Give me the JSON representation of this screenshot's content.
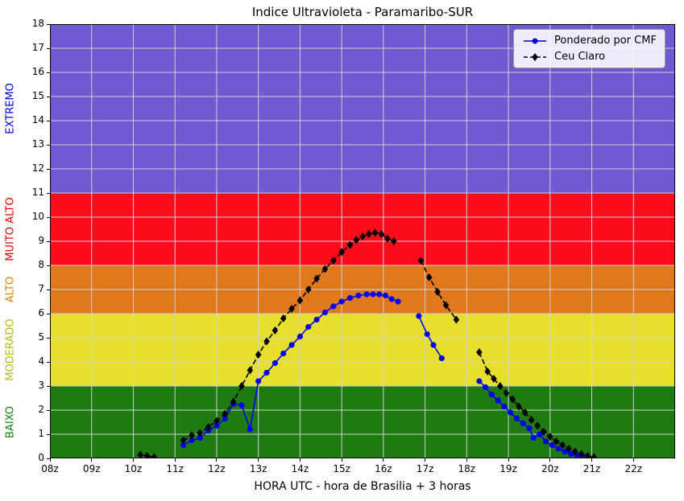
{
  "title": "Indice Ultravioleta - Paramaribo-SUR",
  "axes": {
    "xlabel": "HORA UTC - hora de Brasilia + 3 horas",
    "xlim": [
      8,
      23
    ],
    "ylim": [
      0,
      18
    ],
    "x_ticks": {
      "values": [
        8,
        9,
        10,
        11,
        12,
        13,
        14,
        15,
        16,
        17,
        18,
        19,
        20,
        21,
        22
      ],
      "labels": [
        "08z",
        "09z",
        "10z",
        "11z",
        "12z",
        "13z",
        "14z",
        "15z",
        "16z",
        "17z",
        "18z",
        "19z",
        "20z",
        "21z",
        "22z"
      ]
    },
    "y_ticks": {
      "values": [
        0,
        1,
        2,
        3,
        4,
        5,
        6,
        7,
        8,
        9,
        10,
        11,
        12,
        13,
        14,
        15,
        16,
        17,
        18
      ],
      "labels": [
        "0",
        "1",
        "2",
        "3",
        "4",
        "5",
        "6",
        "7",
        "8",
        "9",
        "10",
        "11",
        "12",
        "13",
        "14",
        "15",
        "16",
        "17",
        "18"
      ]
    },
    "grid_color": "#cfcfcf"
  },
  "bands": [
    {
      "name": "BAIXO",
      "from": 0,
      "to": 3,
      "color": "#1F7A12",
      "label_color": "#1E8014"
    },
    {
      "name": "MODERADO",
      "from": 3,
      "to": 6,
      "color": "#E6DF2E",
      "label_color": "#B8B813"
    },
    {
      "name": "ALTO",
      "from": 6,
      "to": 8,
      "color": "#E0781E",
      "label_color": "#E08000"
    },
    {
      "name": "MUITO ALTO",
      "from": 8,
      "to": 11,
      "color": "#FB0D1B",
      "label_color": "#DD0000"
    },
    {
      "name": "EXTREMO",
      "from": 11,
      "to": 18,
      "color": "#7059D0",
      "label_color": "#0000DD"
    }
  ],
  "legend": {
    "position": "upper right",
    "items": [
      {
        "label": "Ponderado por CMF"
      },
      {
        "label": "Ceu Claro"
      }
    ]
  },
  "chart_data": {
    "type": "line",
    "title": "Indice Ultravioleta - Paramaribo-SUR",
    "xlabel": "HORA UTC - hora de Brasilia + 3 horas",
    "ylabel": "",
    "xlim": [
      8,
      23
    ],
    "ylim": [
      0,
      18
    ],
    "grid": true,
    "legend_position": "upper right",
    "x_unit": "hora UTC",
    "series": [
      {
        "name": "Ponderado por CMF",
        "color": "#0000EE",
        "line": "solid",
        "marker": "circle",
        "segments": [
          [
            [
              11.2,
              0.55
            ],
            [
              11.4,
              0.75
            ],
            [
              11.6,
              0.85
            ],
            [
              11.8,
              1.15
            ],
            [
              12.0,
              1.35
            ],
            [
              12.2,
              1.65
            ],
            [
              12.4,
              2.25
            ],
            [
              12.6,
              2.2
            ],
            [
              12.8,
              1.2
            ],
            [
              13.0,
              3.2
            ],
            [
              13.2,
              3.55
            ],
            [
              13.4,
              3.95
            ],
            [
              13.6,
              4.35
            ],
            [
              13.8,
              4.7
            ],
            [
              14.0,
              5.05
            ],
            [
              14.2,
              5.45
            ],
            [
              14.4,
              5.75
            ],
            [
              14.6,
              6.05
            ],
            [
              14.8,
              6.3
            ],
            [
              15.0,
              6.5
            ],
            [
              15.2,
              6.65
            ],
            [
              15.4,
              6.75
            ],
            [
              15.6,
              6.8
            ],
            [
              15.75,
              6.8
            ],
            [
              15.9,
              6.8
            ],
            [
              16.05,
              6.75
            ],
            [
              16.2,
              6.6
            ],
            [
              16.35,
              6.5
            ]
          ],
          [
            [
              16.85,
              5.9
            ],
            [
              17.05,
              5.15
            ],
            [
              17.2,
              4.7
            ],
            [
              17.4,
              4.15
            ]
          ],
          [
            [
              18.3,
              3.2
            ],
            [
              18.45,
              2.95
            ],
            [
              18.6,
              2.65
            ],
            [
              18.75,
              2.4
            ],
            [
              18.9,
              2.15
            ],
            [
              19.05,
              1.9
            ],
            [
              19.2,
              1.65
            ],
            [
              19.35,
              1.45
            ],
            [
              19.5,
              1.25
            ],
            [
              19.6,
              0.85
            ],
            [
              19.75,
              1.0
            ],
            [
              19.9,
              0.7
            ],
            [
              20.05,
              0.55
            ],
            [
              20.2,
              0.4
            ],
            [
              20.35,
              0.28
            ],
            [
              20.5,
              0.18
            ],
            [
              20.65,
              0.1
            ],
            [
              20.8,
              0.06
            ]
          ]
        ]
      },
      {
        "name": "Ceu Claro",
        "color": "#000000",
        "line": "dashed",
        "marker": "diamond",
        "segments": [
          [
            [
              10.17,
              0.15
            ],
            [
              10.33,
              0.1
            ],
            [
              10.5,
              0.05
            ]
          ],
          [
            [
              11.2,
              0.75
            ],
            [
              11.4,
              0.95
            ],
            [
              11.6,
              1.05
            ],
            [
              11.8,
              1.3
            ],
            [
              12.0,
              1.55
            ],
            [
              12.2,
              1.85
            ],
            [
              12.4,
              2.35
            ],
            [
              12.6,
              3.0
            ],
            [
              12.8,
              3.65
            ],
            [
              13.0,
              4.3
            ],
            [
              13.2,
              4.85
            ],
            [
              13.4,
              5.3
            ],
            [
              13.6,
              5.8
            ],
            [
              13.8,
              6.2
            ],
            [
              14.0,
              6.55
            ],
            [
              14.2,
              7.0
            ],
            [
              14.4,
              7.45
            ],
            [
              14.6,
              7.85
            ],
            [
              14.8,
              8.2
            ],
            [
              15.0,
              8.55
            ],
            [
              15.2,
              8.85
            ],
            [
              15.35,
              9.05
            ],
            [
              15.5,
              9.2
            ],
            [
              15.65,
              9.3
            ],
            [
              15.8,
              9.35
            ],
            [
              15.95,
              9.3
            ],
            [
              16.1,
              9.1
            ],
            [
              16.25,
              9.0
            ]
          ],
          [
            [
              16.9,
              8.2
            ],
            [
              17.1,
              7.5
            ],
            [
              17.3,
              6.9
            ],
            [
              17.5,
              6.35
            ],
            [
              17.75,
              5.75
            ]
          ],
          [
            [
              18.3,
              4.4
            ],
            [
              18.5,
              3.6
            ],
            [
              18.65,
              3.3
            ],
            [
              18.8,
              3.0
            ],
            [
              18.95,
              2.7
            ],
            [
              19.1,
              2.45
            ],
            [
              19.25,
              2.15
            ],
            [
              19.4,
              1.9
            ],
            [
              19.55,
              1.6
            ],
            [
              19.7,
              1.35
            ],
            [
              19.85,
              1.1
            ],
            [
              20.0,
              0.9
            ],
            [
              20.15,
              0.7
            ],
            [
              20.3,
              0.55
            ],
            [
              20.45,
              0.4
            ],
            [
              20.6,
              0.28
            ],
            [
              20.75,
              0.18
            ],
            [
              20.9,
              0.1
            ],
            [
              21.05,
              0.05
            ]
          ]
        ]
      }
    ]
  }
}
